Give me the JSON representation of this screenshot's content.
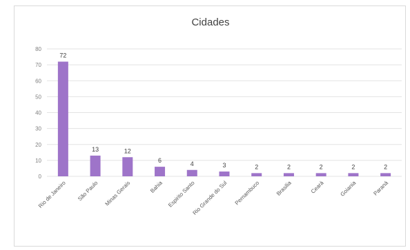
{
  "chart_data": {
    "type": "bar",
    "title": "Cidades",
    "categories": [
      "Rio de Janeiro",
      "São Paulo",
      "Minas Gerais",
      "Bahia",
      "Espirito Santo",
      "Rio Grande do Sul",
      "Pernambuco",
      "Brasilia",
      "Ceará",
      "Goiania",
      "Paraná"
    ],
    "values": [
      72,
      13,
      12,
      6,
      4,
      3,
      2,
      2,
      2,
      2,
      2
    ],
    "ylim": [
      0,
      80
    ],
    "yticks": [
      0,
      10,
      20,
      30,
      40,
      50,
      60,
      70,
      80
    ],
    "grid": true,
    "legend": "none",
    "bar_color": "#9e74c9"
  }
}
